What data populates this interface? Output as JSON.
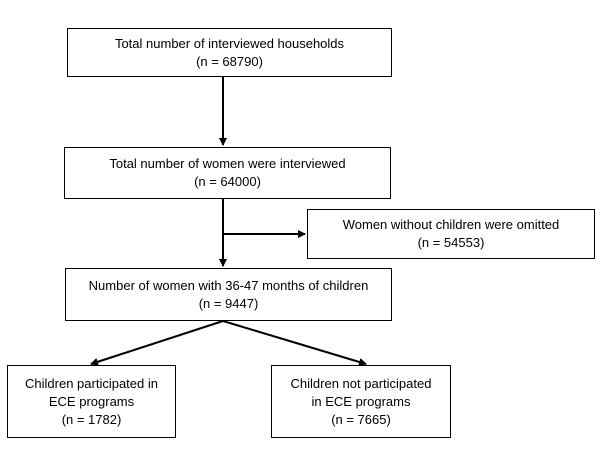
{
  "boxes": {
    "households": {
      "lines": [
        "Total number of interviewed households",
        "(n = 68790)"
      ]
    },
    "women_interviewed": {
      "lines": [
        "Total number of women were interviewed",
        "(n = 64000)"
      ]
    },
    "omitted": {
      "lines": [
        "Women without children were omitted",
        "(n = 54553)"
      ]
    },
    "women_children": {
      "lines": [
        "Number of women with 36-47 months of children",
        "(n = 9447)"
      ]
    },
    "participated": {
      "lines": [
        "Children participated in",
        "ECE programs",
        "(n = 1782)"
      ]
    },
    "not_participated": {
      "lines": [
        "Children not participated",
        "in ECE programs",
        "(n = 7665)"
      ]
    }
  },
  "colors": {
    "stroke": "#000000",
    "background": "#ffffff"
  }
}
